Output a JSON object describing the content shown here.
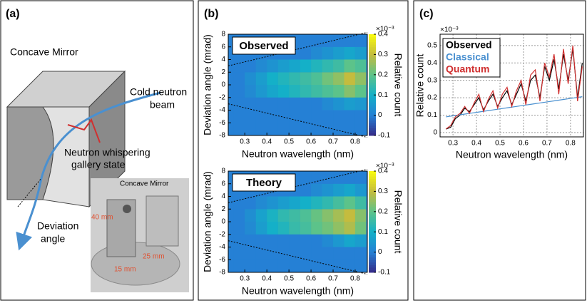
{
  "panel_labels": [
    "(a)",
    "(b)",
    "(c)"
  ],
  "diagram": {
    "mirror_label": "Concave Mirror",
    "beam_label": [
      "Cold neutron",
      "beam"
    ],
    "whisper_label": [
      "Neutron whispering",
      "gallery state"
    ],
    "angle_label": [
      "Deviation",
      "angle"
    ],
    "photo": {
      "label": "Concave Mirror",
      "dims": [
        "40 mm",
        "25 mm",
        "15 mm"
      ]
    }
  },
  "chart_data": [
    {
      "type": "heatmap",
      "title": "Observed",
      "xlabel": "Neutron wavelength (nm)",
      "ylabel": "Deviation angle (mrad)",
      "zlabel": "Relative count",
      "z_multiplier": "×10⁻³",
      "xlim": [
        0.225,
        0.855
      ],
      "ylim": [
        -8,
        8
      ],
      "zlim": [
        -0.1,
        0.4
      ],
      "xticks": [
        0.3,
        0.4,
        0.5,
        0.6,
        0.7,
        0.8
      ],
      "yticks": [
        -8,
        -6,
        -4,
        -2,
        0,
        2,
        4,
        6,
        8
      ],
      "zticks": [
        -0.1,
        0,
        0.1,
        0.2,
        0.3,
        0.4
      ],
      "x_bins": [
        0.25,
        0.3,
        0.35,
        0.4,
        0.45,
        0.5,
        0.55,
        0.6,
        0.65,
        0.7,
        0.75,
        0.8,
        0.85
      ],
      "y_bins": [
        -8,
        -6,
        -4,
        -2,
        0,
        2,
        4,
        6,
        8
      ],
      "z": [
        [
          0,
          0,
          0,
          0,
          0,
          0,
          0,
          0,
          0,
          0,
          0,
          0
        ],
        [
          0,
          0,
          0,
          0,
          0,
          0,
          0,
          0,
          0,
          0,
          0,
          0
        ],
        [
          0,
          0,
          0,
          0,
          0,
          0,
          0,
          0,
          0.02,
          0.04,
          0.06,
          0.05
        ],
        [
          0,
          0.02,
          0.05,
          0.08,
          0.1,
          0.12,
          0.14,
          0.16,
          0.18,
          0.2,
          0.24,
          0.2
        ],
        [
          0,
          0.03,
          0.06,
          0.1,
          0.12,
          0.14,
          0.16,
          0.18,
          0.22,
          0.25,
          0.3,
          0.25
        ],
        [
          0,
          0,
          0.02,
          0.04,
          0.06,
          0.08,
          0.1,
          0.12,
          0.14,
          0.16,
          0.2,
          0.18
        ],
        [
          0,
          0,
          0,
          0,
          0,
          0,
          0,
          0.02,
          0.04,
          0.06,
          0.08,
          0.06
        ],
        [
          0,
          0,
          0,
          0,
          0,
          0,
          0,
          0,
          0,
          0,
          0,
          0
        ]
      ]
    },
    {
      "type": "heatmap",
      "title": "Theory",
      "xlabel": "Neutron wavelength (nm)",
      "ylabel": "Deviation angle (mrad)",
      "zlabel": "Relative count",
      "z_multiplier": "×10⁻³",
      "xlim": [
        0.225,
        0.855
      ],
      "ylim": [
        -8,
        8
      ],
      "zlim": [
        -0.1,
        0.4
      ],
      "xticks": [
        0.3,
        0.4,
        0.5,
        0.6,
        0.7,
        0.8
      ],
      "yticks": [
        -8,
        -6,
        -4,
        -2,
        0,
        2,
        4,
        6,
        8
      ],
      "zticks": [
        -0.1,
        0,
        0.1,
        0.2,
        0.3,
        0.4
      ],
      "x_bins": [
        0.25,
        0.3,
        0.35,
        0.4,
        0.45,
        0.5,
        0.55,
        0.6,
        0.65,
        0.7,
        0.75,
        0.8,
        0.85
      ],
      "y_bins": [
        -8,
        -6,
        -4,
        -2,
        0,
        2,
        4,
        6,
        8
      ],
      "z": [
        [
          0,
          0,
          0,
          0,
          0,
          0,
          0,
          0,
          0,
          0,
          0,
          0
        ],
        [
          0,
          0,
          0,
          0,
          0,
          0,
          0,
          0,
          0,
          0,
          0,
          0
        ],
        [
          0,
          0,
          0,
          0,
          0,
          0,
          0,
          0,
          0.02,
          0.05,
          0.08,
          0.06
        ],
        [
          0,
          0.02,
          0.06,
          0.1,
          0.12,
          0.15,
          0.17,
          0.2,
          0.22,
          0.25,
          0.28,
          0.22
        ],
        [
          0,
          0.03,
          0.07,
          0.11,
          0.14,
          0.16,
          0.18,
          0.21,
          0.24,
          0.27,
          0.3,
          0.24
        ],
        [
          0,
          0,
          0.02,
          0.04,
          0.06,
          0.08,
          0.1,
          0.12,
          0.14,
          0.17,
          0.2,
          0.16
        ],
        [
          0,
          0,
          0,
          0,
          0,
          0,
          0,
          0.02,
          0.04,
          0.06,
          0.08,
          0.05
        ],
        [
          0,
          0,
          0,
          0,
          0,
          0,
          0,
          0,
          0,
          0,
          0,
          0
        ]
      ]
    },
    {
      "type": "line",
      "xlabel": "Neutron wavelength (nm)",
      "ylabel": "Relative count",
      "y_multiplier": "×10⁻³",
      "xlim": [
        0.245,
        0.855
      ],
      "ylim": [
        -0.025,
        0.565
      ],
      "xticks": [
        0.3,
        0.4,
        0.5,
        0.6,
        0.7,
        0.8
      ],
      "yticks": [
        0,
        0.1,
        0.2,
        0.3,
        0.4,
        0.5
      ],
      "grid": true,
      "legend": "upper left",
      "x": [
        0.27,
        0.29,
        0.31,
        0.33,
        0.35,
        0.37,
        0.39,
        0.41,
        0.43,
        0.45,
        0.47,
        0.49,
        0.51,
        0.53,
        0.55,
        0.57,
        0.59,
        0.61,
        0.63,
        0.65,
        0.67,
        0.69,
        0.71,
        0.73,
        0.75,
        0.77,
        0.79,
        0.81,
        0.83,
        0.85
      ],
      "series": [
        {
          "name": "Observed",
          "color": "#000000",
          "values": [
            0.02,
            0.03,
            0.08,
            0.1,
            0.14,
            0.12,
            0.16,
            0.2,
            0.13,
            0.18,
            0.22,
            0.15,
            0.2,
            0.24,
            0.16,
            0.22,
            0.28,
            0.18,
            0.3,
            0.33,
            0.2,
            0.38,
            0.3,
            0.42,
            0.25,
            0.45,
            0.3,
            0.48,
            0.2,
            0.4
          ]
        },
        {
          "name": "Classical",
          "color": "#4a90d0",
          "values": [
            0.09,
            0.094,
            0.098,
            0.102,
            0.106,
            0.11,
            0.114,
            0.118,
            0.122,
            0.126,
            0.13,
            0.134,
            0.138,
            0.142,
            0.146,
            0.15,
            0.154,
            0.158,
            0.162,
            0.166,
            0.17,
            0.174,
            0.178,
            0.182,
            0.186,
            0.19,
            0.194,
            0.198,
            0.202,
            0.206
          ]
        },
        {
          "name": "Quantum",
          "color": "#d03030",
          "values": [
            0.02,
            0.04,
            0.09,
            0.11,
            0.15,
            0.11,
            0.17,
            0.22,
            0.12,
            0.19,
            0.24,
            0.14,
            0.22,
            0.26,
            0.15,
            0.24,
            0.3,
            0.16,
            0.33,
            0.36,
            0.18,
            0.4,
            0.32,
            0.45,
            0.22,
            0.48,
            0.28,
            0.5,
            0.18,
            0.38
          ]
        }
      ]
    }
  ]
}
